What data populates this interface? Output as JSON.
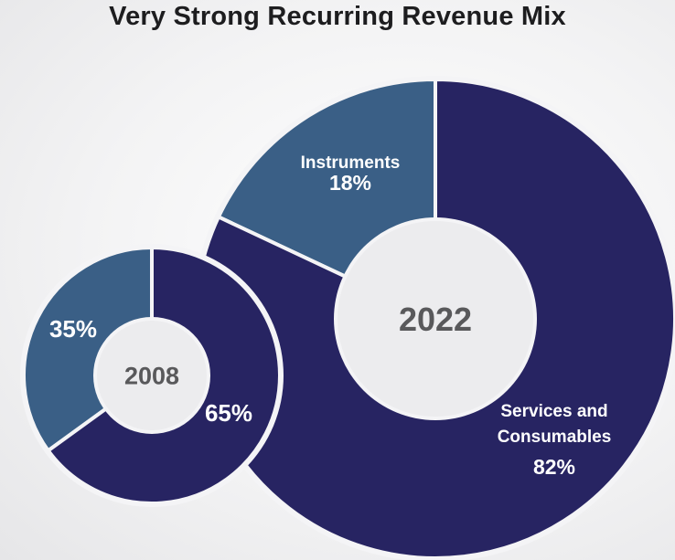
{
  "title": "Very Strong Recurring Revenue Mix",
  "colors": {
    "services": "#272462",
    "instruments": "#3a5f86",
    "hole": "#ececee",
    "separator": "#f4f4f6",
    "center_text": "#59595b"
  },
  "chart_data": [
    {
      "type": "pie",
      "title": "2022",
      "slices": [
        {
          "label_lines": [
            "Instruments"
          ],
          "value_label": "18%",
          "value": 18,
          "color": "#3a5f86"
        },
        {
          "label_lines": [
            "Services and",
            "Consumables"
          ],
          "value_label": "82%",
          "value": 82,
          "color": "#272462"
        }
      ]
    },
    {
      "type": "pie",
      "title": "2008",
      "slices": [
        {
          "label_lines": [],
          "value_label": "35%",
          "value": 35,
          "color": "#3a5f86"
        },
        {
          "label_lines": [],
          "value_label": "65%",
          "value": 65,
          "color": "#272462"
        }
      ]
    }
  ]
}
